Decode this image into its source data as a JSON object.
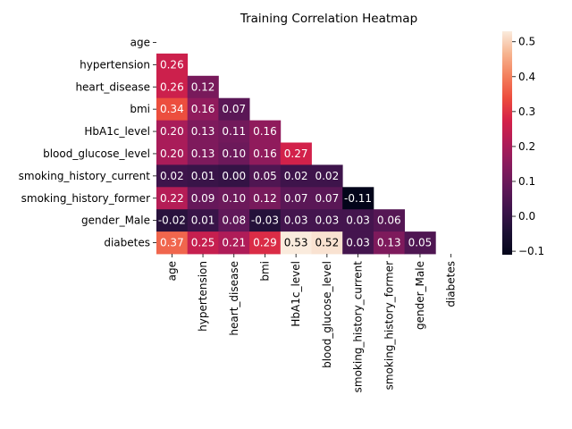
{
  "chart_data": {
    "type": "heatmap",
    "title": "Training Correlation Heatmap",
    "xlabel": "",
    "ylabel": "",
    "labels": [
      "age",
      "hypertension",
      "heart_disease",
      "bmi",
      "HbA1c_level",
      "blood_glucose_level",
      "smoking_history_current",
      "smoking_history_former",
      "gender_Male",
      "diabetes"
    ],
    "mask": "upper-triangle-including-diagonal",
    "values": [
      [
        null,
        null,
        null,
        null,
        null,
        null,
        null,
        null,
        null,
        null
      ],
      [
        0.26,
        null,
        null,
        null,
        null,
        null,
        null,
        null,
        null,
        null
      ],
      [
        0.26,
        0.12,
        null,
        null,
        null,
        null,
        null,
        null,
        null,
        null
      ],
      [
        0.34,
        0.16,
        0.07,
        null,
        null,
        null,
        null,
        null,
        null,
        null
      ],
      [
        0.2,
        0.13,
        0.11,
        0.16,
        null,
        null,
        null,
        null,
        null,
        null
      ],
      [
        0.2,
        0.13,
        0.1,
        0.16,
        0.27,
        null,
        null,
        null,
        null,
        null
      ],
      [
        0.02,
        0.01,
        0.0,
        0.05,
        0.02,
        0.02,
        null,
        null,
        null,
        null
      ],
      [
        0.22,
        0.09,
        0.1,
        0.12,
        0.07,
        0.07,
        -0.11,
        null,
        null,
        null
      ],
      [
        -0.02,
        0.01,
        0.08,
        -0.03,
        0.03,
        0.03,
        0.03,
        0.06,
        null,
        null
      ],
      [
        0.37,
        0.25,
        0.21,
        0.29,
        0.53,
        0.52,
        0.03,
        0.13,
        0.05,
        null
      ]
    ],
    "value_format": "0.00",
    "colormap": "rocket",
    "colorbar": {
      "range": [
        -0.11,
        0.53
      ],
      "ticks": [
        -0.1,
        0.0,
        0.1,
        0.2,
        0.3,
        0.4,
        0.5
      ],
      "tick_labels": [
        "−0.1",
        "0.0",
        "0.1",
        "0.2",
        "0.3",
        "0.4",
        "0.5"
      ]
    }
  }
}
